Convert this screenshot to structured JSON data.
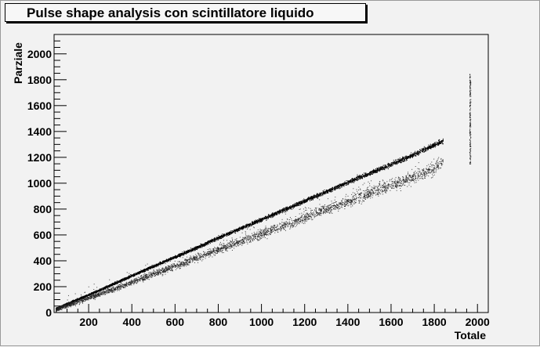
{
  "chart_data": {
    "type": "scatter",
    "title": "Pulse shape analysis con scintillatore liquido",
    "xlabel": "Totale",
    "ylabel": "Parziale",
    "xlim": [
      40,
      2050
    ],
    "ylim": [
      0,
      2150
    ],
    "xticks": [
      200,
      400,
      600,
      800,
      1000,
      1200,
      1400,
      1600,
      1800,
      2000
    ],
    "yticks": [
      0,
      200,
      400,
      600,
      800,
      1000,
      1200,
      1400,
      1600,
      1800,
      2000
    ],
    "grid": false,
    "series": [
      {
        "points": [
          [
            50,
            34
          ],
          [
            100,
            70
          ],
          [
            200,
            140
          ],
          [
            300,
            213
          ],
          [
            400,
            288
          ],
          [
            500,
            361
          ],
          [
            600,
            432
          ],
          [
            700,
            505
          ],
          [
            800,
            580
          ],
          [
            900,
            652
          ],
          [
            1000,
            722
          ],
          [
            1100,
            793
          ],
          [
            1200,
            866
          ],
          [
            1300,
            938
          ],
          [
            1400,
            1010
          ],
          [
            1500,
            1080
          ],
          [
            1600,
            1150
          ],
          [
            1700,
            1220
          ],
          [
            1800,
            1300
          ],
          [
            1840,
            1330
          ]
        ]
      },
      {
        "points": [
          [
            50,
            28
          ],
          [
            100,
            58
          ],
          [
            200,
            115
          ],
          [
            300,
            175
          ],
          [
            400,
            238
          ],
          [
            500,
            300
          ],
          [
            600,
            362
          ],
          [
            700,
            425
          ],
          [
            800,
            490
          ],
          [
            900,
            553
          ],
          [
            1000,
            612
          ],
          [
            1100,
            675
          ],
          [
            1200,
            738
          ],
          [
            1300,
            800
          ],
          [
            1400,
            862
          ],
          [
            1500,
            925
          ],
          [
            1600,
            988
          ],
          [
            1700,
            1050
          ],
          [
            1800,
            1120
          ],
          [
            1840,
            1180
          ]
        ]
      },
      {
        "points": [
          [
            1965,
            1150
          ],
          [
            1965,
            1300
          ],
          [
            1965,
            1450
          ],
          [
            1965,
            1600
          ],
          [
            1965,
            1750
          ],
          [
            1965,
            1840
          ]
        ]
      }
    ]
  }
}
